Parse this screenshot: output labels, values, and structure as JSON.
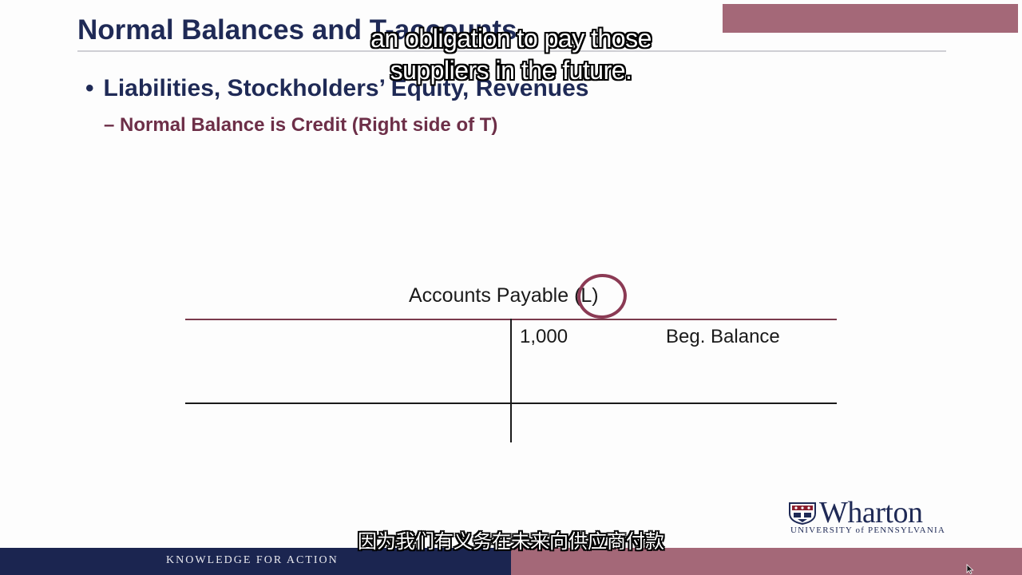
{
  "slide": {
    "title": "Normal Balances and T-accounts",
    "bullet": "Liabilities, Stockholders’ Equity, Revenues",
    "bullet_marker": "•",
    "sub_bullet": "– Normal Balance is Credit (Right side of T)"
  },
  "t_account": {
    "title": "Accounts Payable (L)",
    "credit_amount": "1,000",
    "credit_label": "Beg. Balance"
  },
  "logo": {
    "name": "Wharton",
    "subtitle": "UNIVERSITY of PENNSYLVANIA"
  },
  "footer": {
    "tagline": "KNOWLEDGE FOR ACTION"
  },
  "captions": {
    "english_line1": "an obligation to pay those",
    "english_line2": "suppliers in the future.",
    "chinese": "因为我们有义务在未来向供应商付款"
  },
  "colors": {
    "navy": "#1f2a56",
    "maroon": "#6d2f48",
    "rose": "#a46878"
  }
}
